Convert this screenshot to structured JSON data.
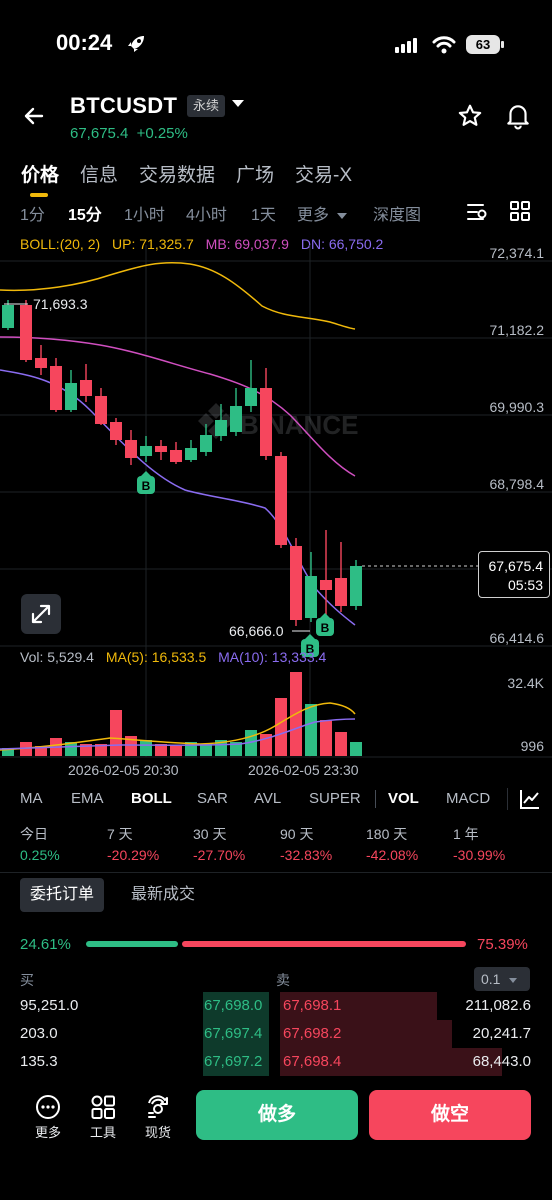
{
  "status_bar": {
    "time": "00:24",
    "battery": "63"
  },
  "header": {
    "symbol": "BTCUSDT",
    "contract_type": "永续",
    "price": "67,675.4",
    "change": "+0.25%"
  },
  "main_tabs": [
    {
      "label": "价格",
      "active": true
    },
    {
      "label": "信息"
    },
    {
      "label": "交易数据"
    },
    {
      "label": "广场"
    },
    {
      "label": "交易-X"
    }
  ],
  "intervals": [
    {
      "label": "1分"
    },
    {
      "label": "15分",
      "active": true
    },
    {
      "label": "1小时"
    },
    {
      "label": "4小时"
    },
    {
      "label": "1天"
    },
    {
      "label": "更多"
    },
    {
      "label": "深度图"
    }
  ],
  "boll": {
    "label": "BOLL:(20, 2)",
    "up": "UP: 71,325.7",
    "mb": "MB: 69,037.9",
    "dn": "DN: 66,750.2"
  },
  "price_axis": [
    "72,374.1",
    "71,182.2",
    "69,990.3",
    "68,798.4",
    "66,414.6"
  ],
  "current_price_tag": {
    "price": "67,675.4",
    "countdown": "05:53"
  },
  "chart_annotations": {
    "high": "71,693.3",
    "low": "66,666.0",
    "buy_marker": "B",
    "watermark": "BINANCE"
  },
  "volume": {
    "vol": "Vol: 5,529.4",
    "ma5": "MA(5): 16,533.5",
    "ma10": "MA(10): 13,333.4",
    "axis_top": "32.4K",
    "axis_bottom": "996"
  },
  "time_axis": [
    "2026-02-05 20:30",
    "2026-02-05 23:30"
  ],
  "indicators": [
    "MA",
    "EMA",
    "BOLL",
    "SAR",
    "AVL",
    "SUPER",
    "VOL",
    "MACD"
  ],
  "performance": [
    {
      "label": "今日",
      "value": "0.25%",
      "dir": "up"
    },
    {
      "label": "7 天",
      "value": "-20.29%",
      "dir": "down"
    },
    {
      "label": "30 天",
      "value": "-27.70%",
      "dir": "down"
    },
    {
      "label": "90 天",
      "value": "-32.83%",
      "dir": "down"
    },
    {
      "label": "180 天",
      "value": "-42.08%",
      "dir": "down"
    },
    {
      "label": "1 年",
      "value": "-30.99%",
      "dir": "down"
    }
  ],
  "orderbook": {
    "tab_orders": "委托订单",
    "tab_trades": "最新成交",
    "buy_pct": "24.61%",
    "sell_pct": "75.39%",
    "buy_ratio": 0.2461,
    "head_buy": "买",
    "head_sell": "卖",
    "precision": "0.1",
    "rows": [
      {
        "bid_qty": "95,251.0",
        "bid_price": "67,698.0",
        "ask_price": "67,698.1",
        "ask_qty": "211,082.6"
      },
      {
        "bid_qty": "203.0",
        "bid_price": "67,697.4",
        "ask_price": "67,698.2",
        "ask_qty": "20,241.7"
      },
      {
        "bid_qty": "135.3",
        "bid_price": "67,697.2",
        "ask_price": "67,698.4",
        "ask_qty": "68,443.0"
      }
    ]
  },
  "bottom_bar": {
    "more": "更多",
    "tools": "工具",
    "spot": "现货",
    "long": "做多",
    "short": "做空"
  },
  "colors": {
    "up": "#2ebd85",
    "down": "#f6465d",
    "accent": "#f0b90b",
    "boll_up": "#f0b90b",
    "boll_mb": "#d04fc0",
    "boll_dn": "#8a6cf0"
  }
}
